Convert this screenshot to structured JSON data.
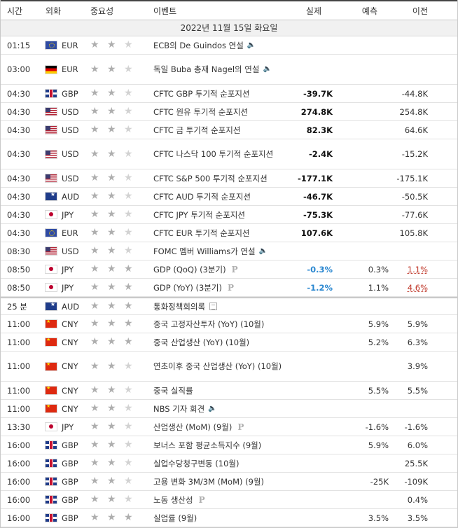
{
  "headers": {
    "time": "시간",
    "currency": "외화",
    "importance": "중요성",
    "event": "이벤트",
    "actual": "실제",
    "forecast": "예측",
    "previous": "이전"
  },
  "date_label": "2022년 11월 15일 화요일",
  "rows": [
    {
      "time": "01:15",
      "flag": "eu",
      "currency": "EUR",
      "stars": 2,
      "event": "ECB의 De Guindos 연설",
      "icon": "speaker",
      "actual": "",
      "forecast": "",
      "previous": "",
      "h": 26
    },
    {
      "time": "03:00",
      "flag": "de",
      "currency": "EUR",
      "stars": 2,
      "event": "독일 Buba 총재 Nagel의 연설",
      "icon": "speaker",
      "actual": "",
      "forecast": "",
      "previous": "",
      "h": 43
    },
    {
      "time": "04:30",
      "flag": "gb",
      "currency": "GBP",
      "stars": 2,
      "event": "CFTC GBP 투기적 순포지션",
      "icon": "",
      "actual": "-39.7K",
      "forecast": "",
      "previous": "-44.8K",
      "h": 26
    },
    {
      "time": "04:30",
      "flag": "us",
      "currency": "USD",
      "stars": 2,
      "event": "CFTC 원유 투기적 순포지션",
      "icon": "",
      "actual": "274.8K",
      "forecast": "",
      "previous": "254.8K",
      "h": 26
    },
    {
      "time": "04:30",
      "flag": "us",
      "currency": "USD",
      "stars": 2,
      "event": "CFTC 금 투기적 순포지션",
      "icon": "",
      "actual": "82.3K",
      "forecast": "",
      "previous": "64.6K",
      "h": 26
    },
    {
      "time": "04:30",
      "flag": "us",
      "currency": "USD",
      "stars": 2,
      "event": "CFTC 나스닥 100 투기적 순포지션",
      "icon": "",
      "actual": "-2.4K",
      "forecast": "",
      "previous": "-15.2K",
      "h": 43
    },
    {
      "time": "04:30",
      "flag": "us",
      "currency": "USD",
      "stars": 2,
      "event": "CFTC S&P 500 투기적 순포지션",
      "icon": "",
      "actual": "-177.1K",
      "forecast": "",
      "previous": "-175.1K",
      "h": 26
    },
    {
      "time": "04:30",
      "flag": "au",
      "currency": "AUD",
      "stars": 2,
      "event": "CFTC AUD 투기적 순포지션",
      "icon": "",
      "actual": "-46.7K",
      "forecast": "",
      "previous": "-50.5K",
      "h": 26
    },
    {
      "time": "04:30",
      "flag": "jp",
      "currency": "JPY",
      "stars": 2,
      "event": "CFTC JPY 투기적 순포지션",
      "icon": "",
      "actual": "-75.3K",
      "forecast": "",
      "previous": "-77.6K",
      "h": 26
    },
    {
      "time": "04:30",
      "flag": "eu",
      "currency": "EUR",
      "stars": 2,
      "event": "CFTC EUR 투기적 순포지션",
      "icon": "",
      "actual": "107.6K",
      "forecast": "",
      "previous": "105.8K",
      "h": 26
    },
    {
      "time": "08:30",
      "flag": "us",
      "currency": "USD",
      "stars": 2,
      "event": "FOMC 멤버 Williams가 연설",
      "icon": "speaker",
      "actual": "",
      "forecast": "",
      "previous": "",
      "h": 26
    },
    {
      "time": "08:50",
      "flag": "jp",
      "currency": "JPY",
      "stars": 3,
      "event": "GDP (QoQ) (3분기)",
      "icon": "prelim",
      "actual": "-0.3%",
      "actual_color": "pos",
      "forecast": "0.3%",
      "previous": "1.1%",
      "previous_color": "neg",
      "h": 26
    },
    {
      "time": "08:50",
      "flag": "jp",
      "currency": "JPY",
      "stars": 3,
      "event": "GDP (YoY) (3분기)",
      "icon": "prelim",
      "actual": "-1.2%",
      "actual_color": "pos",
      "forecast": "1.1%",
      "previous": "4.6%",
      "previous_color": "neg",
      "h": 26
    },
    {
      "time": "25 분",
      "flag": "au",
      "currency": "AUD",
      "stars": 3,
      "event": "통화정책회의록",
      "icon": "report",
      "actual": "",
      "forecast": "",
      "previous": "",
      "h": 26,
      "sep": true
    },
    {
      "time": "11:00",
      "flag": "cn",
      "currency": "CNY",
      "stars": 3,
      "event": "중국 고정자산투자 (YoY) (10월)",
      "icon": "",
      "actual": "",
      "forecast": "5.9%",
      "previous": "5.9%",
      "h": 26
    },
    {
      "time": "11:00",
      "flag": "cn",
      "currency": "CNY",
      "stars": 3,
      "event": "중국 산업생산 (YoY) (10월)",
      "icon": "",
      "actual": "",
      "forecast": "5.2%",
      "previous": "6.3%",
      "h": 26
    },
    {
      "time": "11:00",
      "flag": "cn",
      "currency": "CNY",
      "stars": 2,
      "event": "연초이후 중국 산업생산 (YoY) (10월)",
      "icon": "",
      "actual": "",
      "forecast": "",
      "previous": "3.9%",
      "h": 43
    },
    {
      "time": "11:00",
      "flag": "cn",
      "currency": "CNY",
      "stars": 2,
      "event": "중국 실직률",
      "icon": "",
      "actual": "",
      "forecast": "5.5%",
      "previous": "5.5%",
      "h": 26
    },
    {
      "time": "11:00",
      "flag": "cn",
      "currency": "CNY",
      "stars": 2,
      "event": "NBS 기자 회견",
      "icon": "speaker",
      "actual": "",
      "forecast": "",
      "previous": "",
      "h": 26
    },
    {
      "time": "13:30",
      "flag": "jp",
      "currency": "JPY",
      "stars": 2,
      "event": "산업생산 (MoM) (9월)",
      "icon": "prelim",
      "actual": "",
      "forecast": "-1.6%",
      "previous": "-1.6%",
      "h": 26
    },
    {
      "time": "16:00",
      "flag": "gb",
      "currency": "GBP",
      "stars": 2,
      "event": "보너스 포함 평균소득지수 (9월)",
      "icon": "",
      "actual": "",
      "forecast": "5.9%",
      "previous": "6.0%",
      "h": 26
    },
    {
      "time": "16:00",
      "flag": "gb",
      "currency": "GBP",
      "stars": 2,
      "event": "실업수당청구변동 (10월)",
      "icon": "",
      "actual": "",
      "forecast": "",
      "previous": "25.5K",
      "h": 26
    },
    {
      "time": "16:00",
      "flag": "gb",
      "currency": "GBP",
      "stars": 2,
      "event": "고용 변화 3M/3M (MoM) (9월)",
      "icon": "",
      "actual": "",
      "forecast": "-25K",
      "previous": "-109K",
      "h": 26
    },
    {
      "time": "16:00",
      "flag": "gb",
      "currency": "GBP",
      "stars": 2,
      "event": "노동 생산성",
      "icon": "prelim",
      "actual": "",
      "forecast": "",
      "previous": "0.4%",
      "h": 26
    },
    {
      "time": "16:00",
      "flag": "gb",
      "currency": "GBP",
      "stars": 3,
      "event": "실업률 (9월)",
      "icon": "",
      "actual": "",
      "forecast": "3.5%",
      "previous": "3.5%",
      "h": 26
    }
  ]
}
